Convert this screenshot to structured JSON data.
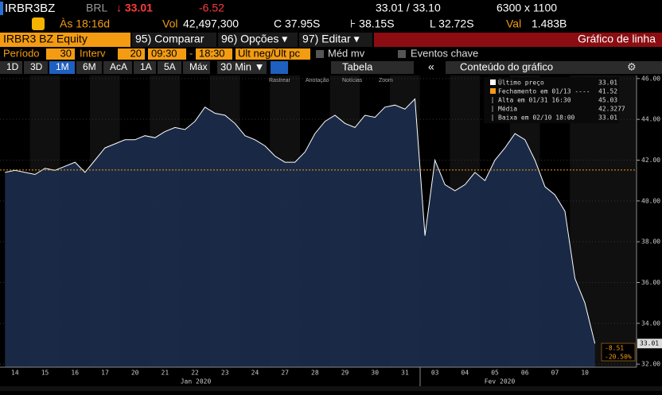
{
  "header": {
    "ticker": "IRBR3BZ",
    "currency": "BRL",
    "arrow_price": "↓ 33.01",
    "change": "-6.52",
    "bid_ask": "33.01 / 33.10",
    "size": "6300 x 1100",
    "time": "Às 18:16d",
    "vol_label": "Vol",
    "volume": "42,497,300",
    "close": "C 37.95S",
    "high": "⊦ 38.15S",
    "low": "L 32.72S",
    "val_label": "Val",
    "value": "1.483B"
  },
  "menu": {
    "security": "IRBR3 BZ Equity",
    "compare": "95) Comparar",
    "options": "96) Opções ▾",
    "edit": "97) Editar ▾",
    "chart_name": "Gráfico de linha"
  },
  "settings": {
    "period_label": "Período",
    "period": "30",
    "interval_label": "Interv",
    "interval": "20",
    "start": "09:30",
    "sep": "-",
    "end": "18:30",
    "field": "Últ neg/Últ pc",
    "moving_avg": "Méd mv",
    "events": "Eventos chave"
  },
  "ranges": [
    "1D",
    "3D",
    "1M",
    "6M",
    "AcA",
    "1A",
    "5A",
    "Máx"
  ],
  "active_range": "1M",
  "toolbar": {
    "bar": "30 Min ▼",
    "table": "Tabela",
    "collapse": "«",
    "content": "Conteúdo do gráfico",
    "gear": "⚙",
    "tools": [
      "Rastrear",
      "Anotação",
      "Notícias",
      "Zoom"
    ]
  },
  "chart_data": {
    "type": "area",
    "categories": [
      null,
      "14",
      null,
      null,
      "15",
      null,
      null,
      "16",
      null,
      null,
      "17",
      null,
      null,
      "20",
      null,
      null,
      "21",
      null,
      null,
      "22",
      null,
      null,
      "23",
      null,
      null,
      "24",
      null,
      null,
      "27",
      null,
      null,
      "28",
      null,
      null,
      "29",
      null,
      null,
      "30",
      null,
      null,
      "31",
      null,
      null,
      "03",
      null,
      null,
      "04",
      null,
      null,
      "05",
      null,
      null,
      "06",
      null,
      null,
      "07",
      null,
      null,
      "10",
      null
    ],
    "period_labels": [
      "Jan 2020",
      "Fev 2020"
    ],
    "series": [
      {
        "name": "Último preço",
        "color": "#ffffff",
        "fill": "#1c2e4d",
        "values": [
          41.4,
          41.5,
          41.4,
          41.3,
          41.6,
          41.5,
          41.7,
          41.9,
          41.4,
          42.0,
          42.6,
          42.8,
          43.0,
          43.0,
          43.2,
          43.1,
          43.4,
          43.6,
          43.5,
          43.9,
          44.6,
          44.3,
          44.2,
          43.8,
          43.2,
          43.0,
          42.7,
          42.2,
          41.9,
          41.9,
          42.4,
          43.3,
          43.9,
          44.2,
          43.8,
          43.6,
          44.2,
          44.1,
          44.6,
          44.7,
          44.5,
          45.0,
          38.3,
          42.0,
          40.8,
          40.5,
          40.8,
          41.4,
          41.0,
          42.0,
          42.6,
          43.3,
          43.0,
          42.0,
          40.7,
          40.3,
          39.5,
          36.2,
          35.0,
          33.01
        ]
      }
    ],
    "reference": {
      "name": "Fechamento em 01/13 ----",
      "value": 41.52,
      "color": "#f39c12"
    },
    "stats": [
      {
        "label": "Alta em 01/31 16:30",
        "value": 45.03
      },
      {
        "label": "Média",
        "value": 42.3277
      },
      {
        "label": "Baixa em 02/10 18:00",
        "value": 33.01
      }
    ],
    "change": "-8.51",
    "change_pct": "-20.50%",
    "ylim": [
      31.85,
      46.15
    ],
    "yticks": [
      {
        "value": 32,
        "label": "32.00"
      },
      {
        "value": 34,
        "label": "34.00"
      },
      {
        "value": 36,
        "label": "36.00"
      },
      {
        "value": 38,
        "label": "38.00"
      },
      {
        "value": 40,
        "label": "40.00"
      },
      {
        "value": 42,
        "label": "42.00"
      },
      {
        "value": 44,
        "label": "44.00"
      },
      {
        "value": 46,
        "label": "46.00"
      }
    ],
    "grid": true
  }
}
